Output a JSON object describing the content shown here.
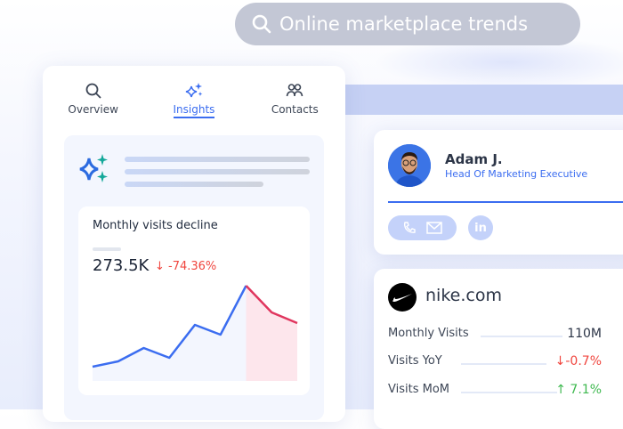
{
  "search": {
    "query": "Online marketplace trends",
    "icon": "search-icon"
  },
  "tabs": [
    {
      "label": "Overview",
      "icon": "search-icon"
    },
    {
      "label": "Insights",
      "icon": "sparkle-icon",
      "active": true
    },
    {
      "label": "Contacts",
      "icon": "people-icon"
    }
  ],
  "insight": {
    "title": "Monthly visits decline",
    "value": "273.5K",
    "change": "↓ -74.36%",
    "colors": {
      "rise": "#3b6df0",
      "decline": "#e0365e",
      "decline_fill": "#fde6ec"
    }
  },
  "chart_data": {
    "type": "line",
    "values": [
      17,
      23,
      38,
      27,
      64,
      53,
      108,
      78,
      66
    ],
    "decline_from_index": 6,
    "ylim": [
      0,
      110
    ],
    "grid": false
  },
  "contact": {
    "name": "Adam J.",
    "role": "Head Of Marketing Executive",
    "actions": [
      "phone-icon",
      "mail-icon",
      "linkedin-icon"
    ],
    "linkedin_label": "in"
  },
  "site": {
    "domain": "nike.com",
    "metrics": [
      {
        "label": "Monthly Visits",
        "value": "110M",
        "color": "#2c3547"
      },
      {
        "label": "Visits YoY",
        "value": "↓-0.7%",
        "color": "#f0463f"
      },
      {
        "label": "Visits MoM",
        "value": "↑ 7.1%",
        "color": "#3fb950"
      }
    ]
  }
}
